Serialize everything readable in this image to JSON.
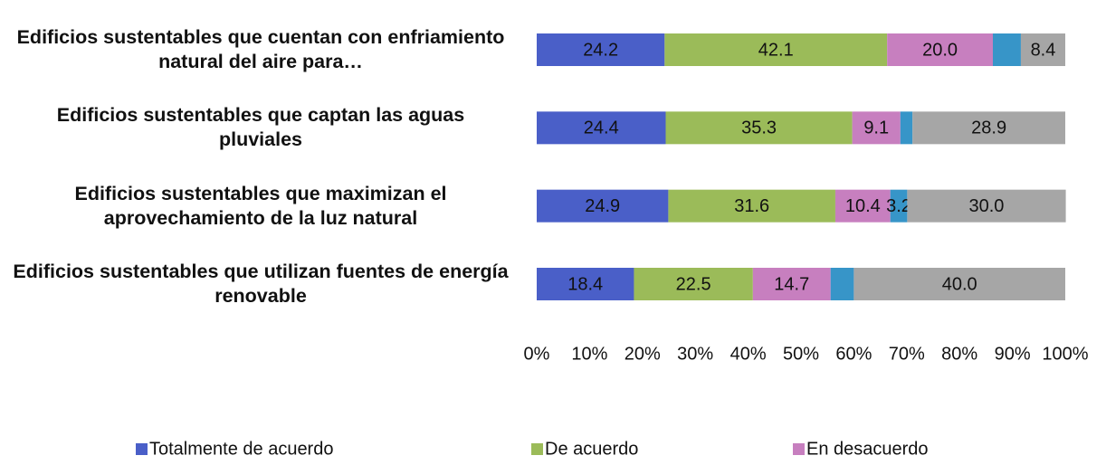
{
  "chart_data": {
    "type": "stacked_barh",
    "categories": [
      "Edificios sustentables que cuentan con enfriamiento natural del aire para…",
      "Edificios sustentables que captan las aguas pluviales",
      "Edificios sustentables que maximizan el aprovechamiento de la luz natural",
      "Edificios sustentables que utilizan fuentes de energía renovable"
    ],
    "series": [
      {
        "name": "Totalmente de acuerdo",
        "color": "#4a5fc8",
        "values": [
          24.2,
          24.4,
          24.9,
          18.4
        ],
        "value_labels": [
          "24.2",
          "24.4",
          "24.9",
          "18.4"
        ]
      },
      {
        "name": "De acuerdo",
        "color": "#9bbb59",
        "values": [
          42.1,
          35.3,
          31.6,
          22.5
        ],
        "value_labels": [
          "42.1",
          "35.3",
          "31.6",
          "22.5"
        ]
      },
      {
        "name": "En desacuerdo",
        "color": "#c77fbf",
        "values": [
          20.0,
          9.1,
          10.4,
          14.7
        ],
        "value_labels": [
          "20.0",
          "9.1",
          "10.4",
          "14.7"
        ]
      },
      {
        "color": "#3795c8",
        "values": [
          5.3,
          2.3,
          3.2,
          4.4
        ],
        "value_labels": [
          null,
          null,
          "3.2",
          null
        ]
      },
      {
        "color": "#a6a6a6",
        "values": [
          8.4,
          28.9,
          30.0,
          40.0
        ],
        "value_labels": [
          "8.4",
          "28.9",
          "30.0",
          "40.0"
        ]
      }
    ],
    "xlim": [
      0,
      100
    ],
    "xticks": [
      {
        "value": 0,
        "label": "0%"
      },
      {
        "value": 10,
        "label": "10%"
      },
      {
        "value": 20,
        "label": "20%"
      },
      {
        "value": 30,
        "label": "30%"
      },
      {
        "value": 40,
        "label": "40%"
      },
      {
        "value": 50,
        "label": "50%"
      },
      {
        "value": 60,
        "label": "60%"
      },
      {
        "value": 70,
        "label": "70%"
      },
      {
        "value": 80,
        "label": "80%"
      },
      {
        "value": 90,
        "label": "90%"
      },
      {
        "value": 100,
        "label": "100%"
      }
    ],
    "legend": "bottom"
  }
}
